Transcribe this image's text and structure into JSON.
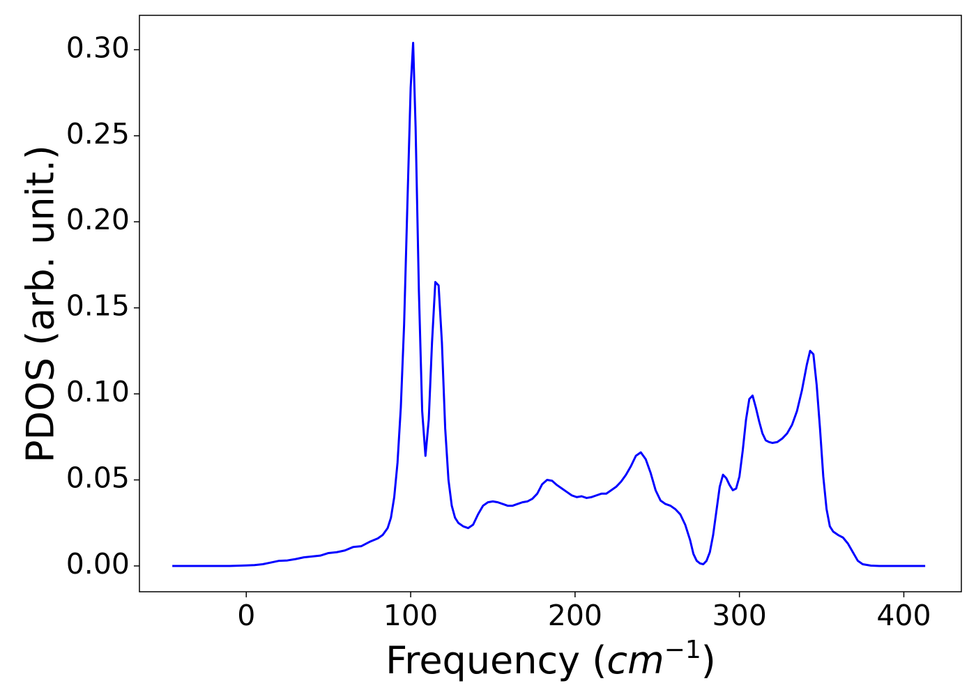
{
  "chart_data": {
    "type": "line",
    "x_label": [
      "Frequency (",
      "cm",
      "−1",
      ")"
    ],
    "y_label": "PDOS (arb. unit.)",
    "x": [
      -45,
      -10,
      0,
      5,
      10,
      15,
      20,
      25,
      30,
      35,
      40,
      45,
      50,
      55,
      60,
      65,
      70,
      75,
      80,
      83,
      86,
      88,
      90,
      92,
      94,
      96,
      98,
      100,
      101.5,
      103,
      105,
      107,
      109,
      111,
      113,
      115,
      117,
      119,
      121,
      123,
      125,
      127,
      129,
      132,
      135,
      138,
      141,
      144,
      147,
      150,
      153,
      156,
      159,
      162,
      165,
      168,
      171,
      174,
      177,
      180,
      183,
      186,
      189,
      192,
      195,
      198,
      201,
      204,
      207,
      210,
      213,
      216,
      219,
      222,
      225,
      228,
      231,
      234,
      237,
      240,
      243,
      246,
      249,
      252,
      255,
      258,
      261,
      264,
      267,
      270,
      272,
      274,
      276,
      278,
      280,
      282,
      284,
      286,
      288,
      290,
      292,
      294,
      296,
      298,
      300,
      302,
      304,
      306,
      308,
      310,
      312,
      314,
      316,
      318,
      320,
      323,
      326,
      329,
      332,
      335,
      338,
      341,
      343,
      345,
      347,
      349,
      351,
      353,
      355,
      357,
      360,
      363,
      366,
      369,
      372,
      375,
      380,
      385,
      413
    ],
    "series": [
      {
        "color": "#0000ff",
        "values": [
          0,
          0,
          0.0003,
          0.0005,
          0.001,
          0.002,
          0.003,
          0.0032,
          0.004,
          0.005,
          0.0055,
          0.006,
          0.0075,
          0.008,
          0.009,
          0.011,
          0.0115,
          0.014,
          0.016,
          0.018,
          0.022,
          0.028,
          0.04,
          0.06,
          0.092,
          0.14,
          0.21,
          0.278,
          0.304,
          0.255,
          0.16,
          0.09,
          0.064,
          0.085,
          0.13,
          0.165,
          0.163,
          0.13,
          0.08,
          0.05,
          0.035,
          0.028,
          0.025,
          0.023,
          0.022,
          0.024,
          0.03,
          0.035,
          0.037,
          0.0375,
          0.037,
          0.036,
          0.035,
          0.035,
          0.036,
          0.037,
          0.0375,
          0.039,
          0.042,
          0.0475,
          0.05,
          0.0495,
          0.047,
          0.045,
          0.043,
          0.041,
          0.04,
          0.0405,
          0.0395,
          0.04,
          0.041,
          0.042,
          0.042,
          0.044,
          0.046,
          0.049,
          0.053,
          0.058,
          0.064,
          0.066,
          0.062,
          0.054,
          0.044,
          0.038,
          0.036,
          0.035,
          0.033,
          0.03,
          0.024,
          0.015,
          0.007,
          0.003,
          0.0015,
          0.001,
          0.003,
          0.008,
          0.018,
          0.032,
          0.046,
          0.053,
          0.051,
          0.047,
          0.044,
          0.045,
          0.052,
          0.067,
          0.085,
          0.097,
          0.099,
          0.092,
          0.084,
          0.077,
          0.073,
          0.072,
          0.0715,
          0.072,
          0.074,
          0.077,
          0.082,
          0.09,
          0.102,
          0.117,
          0.125,
          0.123,
          0.105,
          0.08,
          0.052,
          0.033,
          0.023,
          0.02,
          0.018,
          0.0165,
          0.013,
          0.008,
          0.003,
          0.001,
          0.0002,
          0,
          0
        ]
      }
    ],
    "xlim": [
      -65,
      435
    ],
    "xticks": [
      0,
      100,
      200,
      300,
      400
    ],
    "ylim": [
      -0.015,
      0.32
    ],
    "yticks": [
      {
        "value": 0,
        "label": "0.00"
      },
      {
        "value": 0.05,
        "label": "0.05"
      },
      {
        "value": 0.1,
        "label": "0.10"
      },
      {
        "value": 0.15,
        "label": "0.15"
      },
      {
        "value": 0.2,
        "label": "0.20"
      },
      {
        "value": 0.25,
        "label": "0.25"
      },
      {
        "value": 0.3,
        "label": "0.30"
      }
    ],
    "grid": false
  }
}
